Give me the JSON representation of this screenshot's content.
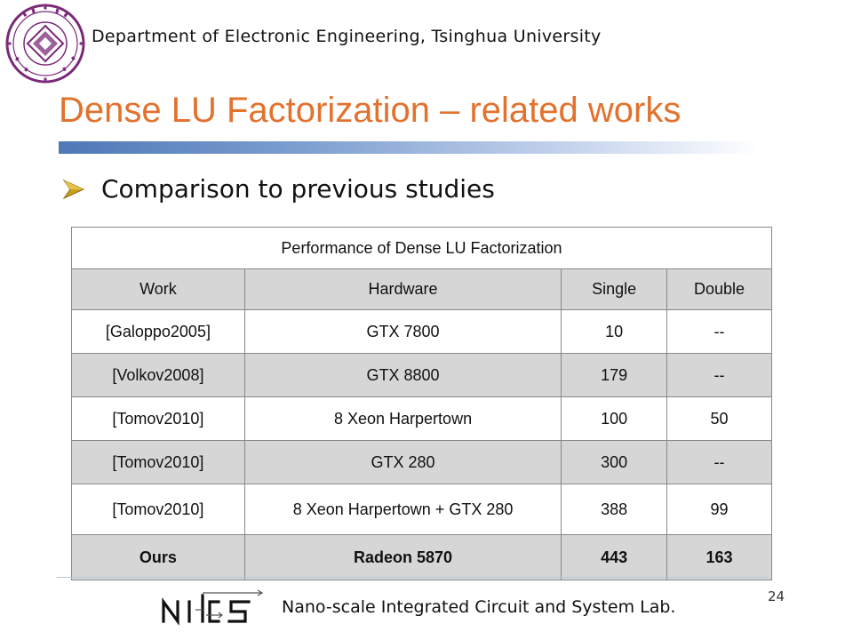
{
  "header": {
    "department": "Department of Electronic Engineering, Tsinghua University"
  },
  "slide": {
    "title": "Dense LU Factorization – related works",
    "bullet": "Comparison to previous studies",
    "page_number": "24"
  },
  "table": {
    "caption": "Performance of Dense LU Factorization",
    "columns": [
      "Work",
      "Hardware",
      "Single",
      "Double"
    ],
    "rows": [
      [
        "[Galoppo2005]",
        "GTX 7800",
        "10",
        "--"
      ],
      [
        "[Volkov2008]",
        "GTX 8800",
        "179",
        "--"
      ],
      [
        "[Tomov2010]",
        "8 Xeon Harpertown",
        "100",
        "50"
      ],
      [
        "[Tomov2010]",
        "GTX 280",
        "300",
        "--"
      ],
      [
        "[Tomov2010]",
        "8 Xeon Harpertown + GTX 280",
        "388",
        "99"
      ],
      [
        "Ours",
        "Radeon 5870",
        "443",
        "163"
      ]
    ]
  },
  "footer": {
    "lab_name": "Nano-scale Integrated Circuit and System Lab."
  },
  "colors": {
    "title": "#E2722E",
    "seal": "#7a2a78",
    "bullet_arrow": "#c8a020",
    "table_header_fill": "#d6d6d6"
  },
  "icons": {
    "seal": "university-seal-icon",
    "bullet": "arrow-bullet-icon",
    "lab_logo": "nics-logo-icon"
  }
}
